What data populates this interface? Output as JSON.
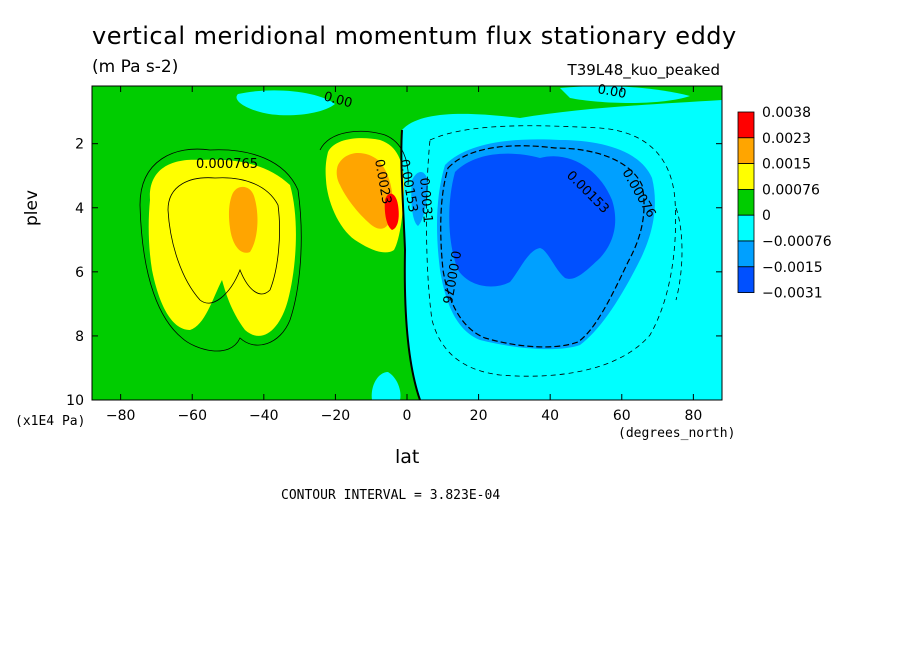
{
  "chart_data": {
    "type": "heatmap",
    "title": "vertical meridional momentum flux stationary eddy",
    "subtitle": "(m Pa s-2)",
    "run_label": "T39L48_kuo_peaked",
    "xlabel": "lat",
    "x_units": "(degrees_north)",
    "ylabel": "plev",
    "y_units": "(x1E4 Pa)",
    "xlim": [
      -88,
      88
    ],
    "ylim": [
      10,
      0.2
    ],
    "x_ticks": [
      "-80",
      "-60",
      "-40",
      "-20",
      "0",
      "20",
      "40",
      "60",
      "80"
    ],
    "y_ticks": [
      "2",
      "4",
      "6",
      "8",
      "10"
    ],
    "legend": {
      "placement": "right",
      "levels": [
        "0.0038",
        "0.0023",
        "0.0015",
        "0.00076",
        "0",
        "−0.00076",
        "−0.0015",
        "−0.0031"
      ],
      "colors": [
        "#ff0000",
        "#ffa500",
        "#ffff00",
        "#00cc00",
        "#00ffff",
        "#00a0ff",
        "#0050ff"
      ]
    },
    "contour_labels": [
      "0.000765",
      "0.00",
      "0.00",
      "0.00153",
      "0.00076",
      "0.00076",
      "0.00153",
      "0.0023",
      "0.0031"
    ],
    "contour_interval": "CONTOUR INTERVAL = 3.823E-04"
  }
}
